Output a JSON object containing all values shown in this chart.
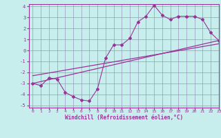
{
  "xlabel": "Windchill (Refroidissement éolien,°C)",
  "ylabel": "",
  "xlim": [
    -0.5,
    23
  ],
  "ylim": [
    -5.2,
    4.2
  ],
  "yticks": [
    -5,
    -4,
    -3,
    -2,
    -1,
    0,
    1,
    2,
    3,
    4
  ],
  "xticks": [
    0,
    1,
    2,
    3,
    4,
    5,
    6,
    7,
    8,
    9,
    10,
    11,
    12,
    13,
    14,
    15,
    16,
    17,
    18,
    19,
    20,
    21,
    22,
    23
  ],
  "bg_color": "#c8eded",
  "line_color": "#993399",
  "grid_color": "#9999bb",
  "line1_x": [
    0,
    1,
    2,
    3,
    4,
    5,
    6,
    7,
    8,
    9,
    10,
    11,
    12,
    13,
    14,
    15,
    16,
    17,
    18,
    19,
    20,
    21,
    22,
    23
  ],
  "line1_y": [
    -3.0,
    -3.2,
    -2.5,
    -2.6,
    -3.8,
    -4.2,
    -4.5,
    -4.6,
    -3.5,
    -0.7,
    0.5,
    0.5,
    1.1,
    2.6,
    3.1,
    4.1,
    3.2,
    2.8,
    3.1,
    3.1,
    3.1,
    2.8,
    1.6,
    0.9
  ],
  "line2_x": [
    0,
    23
  ],
  "line2_y": [
    -3.0,
    0.9
  ],
  "line3_x": [
    0,
    23
  ],
  "line3_y": [
    -2.3,
    0.6
  ]
}
